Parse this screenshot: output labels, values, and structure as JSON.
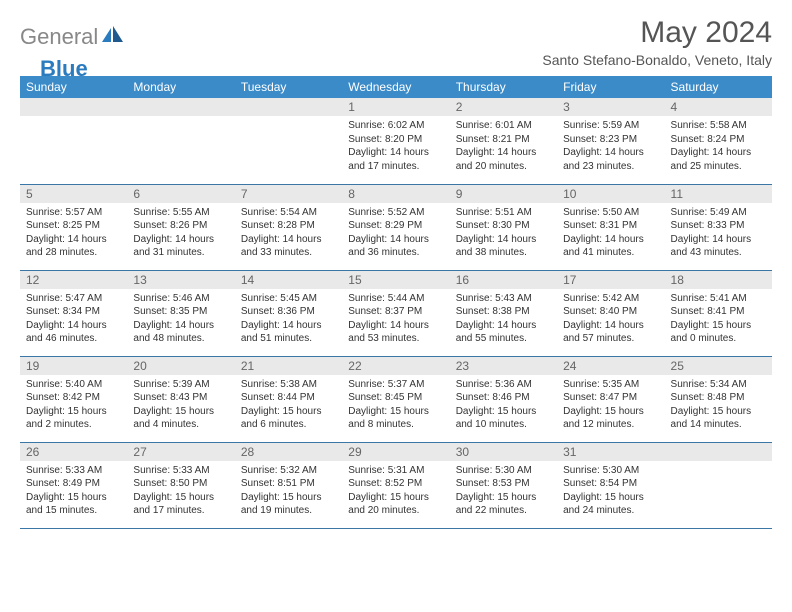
{
  "logo": {
    "text_gray": "General",
    "text_blue": "Blue"
  },
  "title": "May 2024",
  "location": "Santo Stefano-Bonaldo, Veneto, Italy",
  "colors": {
    "header_bg": "#3b8bc9",
    "header_text": "#ffffff",
    "daynum_bg": "#e9e9e9",
    "daynum_text": "#666666",
    "body_text": "#333333",
    "rule": "#3b77a6",
    "logo_gray": "#888888",
    "logo_blue": "#2b7bbf"
  },
  "day_headers": [
    "Sunday",
    "Monday",
    "Tuesday",
    "Wednesday",
    "Thursday",
    "Friday",
    "Saturday"
  ],
  "weeks": [
    [
      null,
      null,
      null,
      {
        "n": "1",
        "sr": "Sunrise: 6:02 AM",
        "ss": "Sunset: 8:20 PM",
        "d1": "Daylight: 14 hours",
        "d2": "and 17 minutes."
      },
      {
        "n": "2",
        "sr": "Sunrise: 6:01 AM",
        "ss": "Sunset: 8:21 PM",
        "d1": "Daylight: 14 hours",
        "d2": "and 20 minutes."
      },
      {
        "n": "3",
        "sr": "Sunrise: 5:59 AM",
        "ss": "Sunset: 8:23 PM",
        "d1": "Daylight: 14 hours",
        "d2": "and 23 minutes."
      },
      {
        "n": "4",
        "sr": "Sunrise: 5:58 AM",
        "ss": "Sunset: 8:24 PM",
        "d1": "Daylight: 14 hours",
        "d2": "and 25 minutes."
      }
    ],
    [
      {
        "n": "5",
        "sr": "Sunrise: 5:57 AM",
        "ss": "Sunset: 8:25 PM",
        "d1": "Daylight: 14 hours",
        "d2": "and 28 minutes."
      },
      {
        "n": "6",
        "sr": "Sunrise: 5:55 AM",
        "ss": "Sunset: 8:26 PM",
        "d1": "Daylight: 14 hours",
        "d2": "and 31 minutes."
      },
      {
        "n": "7",
        "sr": "Sunrise: 5:54 AM",
        "ss": "Sunset: 8:28 PM",
        "d1": "Daylight: 14 hours",
        "d2": "and 33 minutes."
      },
      {
        "n": "8",
        "sr": "Sunrise: 5:52 AM",
        "ss": "Sunset: 8:29 PM",
        "d1": "Daylight: 14 hours",
        "d2": "and 36 minutes."
      },
      {
        "n": "9",
        "sr": "Sunrise: 5:51 AM",
        "ss": "Sunset: 8:30 PM",
        "d1": "Daylight: 14 hours",
        "d2": "and 38 minutes."
      },
      {
        "n": "10",
        "sr": "Sunrise: 5:50 AM",
        "ss": "Sunset: 8:31 PM",
        "d1": "Daylight: 14 hours",
        "d2": "and 41 minutes."
      },
      {
        "n": "11",
        "sr": "Sunrise: 5:49 AM",
        "ss": "Sunset: 8:33 PM",
        "d1": "Daylight: 14 hours",
        "d2": "and 43 minutes."
      }
    ],
    [
      {
        "n": "12",
        "sr": "Sunrise: 5:47 AM",
        "ss": "Sunset: 8:34 PM",
        "d1": "Daylight: 14 hours",
        "d2": "and 46 minutes."
      },
      {
        "n": "13",
        "sr": "Sunrise: 5:46 AM",
        "ss": "Sunset: 8:35 PM",
        "d1": "Daylight: 14 hours",
        "d2": "and 48 minutes."
      },
      {
        "n": "14",
        "sr": "Sunrise: 5:45 AM",
        "ss": "Sunset: 8:36 PM",
        "d1": "Daylight: 14 hours",
        "d2": "and 51 minutes."
      },
      {
        "n": "15",
        "sr": "Sunrise: 5:44 AM",
        "ss": "Sunset: 8:37 PM",
        "d1": "Daylight: 14 hours",
        "d2": "and 53 minutes."
      },
      {
        "n": "16",
        "sr": "Sunrise: 5:43 AM",
        "ss": "Sunset: 8:38 PM",
        "d1": "Daylight: 14 hours",
        "d2": "and 55 minutes."
      },
      {
        "n": "17",
        "sr": "Sunrise: 5:42 AM",
        "ss": "Sunset: 8:40 PM",
        "d1": "Daylight: 14 hours",
        "d2": "and 57 minutes."
      },
      {
        "n": "18",
        "sr": "Sunrise: 5:41 AM",
        "ss": "Sunset: 8:41 PM",
        "d1": "Daylight: 15 hours",
        "d2": "and 0 minutes."
      }
    ],
    [
      {
        "n": "19",
        "sr": "Sunrise: 5:40 AM",
        "ss": "Sunset: 8:42 PM",
        "d1": "Daylight: 15 hours",
        "d2": "and 2 minutes."
      },
      {
        "n": "20",
        "sr": "Sunrise: 5:39 AM",
        "ss": "Sunset: 8:43 PM",
        "d1": "Daylight: 15 hours",
        "d2": "and 4 minutes."
      },
      {
        "n": "21",
        "sr": "Sunrise: 5:38 AM",
        "ss": "Sunset: 8:44 PM",
        "d1": "Daylight: 15 hours",
        "d2": "and 6 minutes."
      },
      {
        "n": "22",
        "sr": "Sunrise: 5:37 AM",
        "ss": "Sunset: 8:45 PM",
        "d1": "Daylight: 15 hours",
        "d2": "and 8 minutes."
      },
      {
        "n": "23",
        "sr": "Sunrise: 5:36 AM",
        "ss": "Sunset: 8:46 PM",
        "d1": "Daylight: 15 hours",
        "d2": "and 10 minutes."
      },
      {
        "n": "24",
        "sr": "Sunrise: 5:35 AM",
        "ss": "Sunset: 8:47 PM",
        "d1": "Daylight: 15 hours",
        "d2": "and 12 minutes."
      },
      {
        "n": "25",
        "sr": "Sunrise: 5:34 AM",
        "ss": "Sunset: 8:48 PM",
        "d1": "Daylight: 15 hours",
        "d2": "and 14 minutes."
      }
    ],
    [
      {
        "n": "26",
        "sr": "Sunrise: 5:33 AM",
        "ss": "Sunset: 8:49 PM",
        "d1": "Daylight: 15 hours",
        "d2": "and 15 minutes."
      },
      {
        "n": "27",
        "sr": "Sunrise: 5:33 AM",
        "ss": "Sunset: 8:50 PM",
        "d1": "Daylight: 15 hours",
        "d2": "and 17 minutes."
      },
      {
        "n": "28",
        "sr": "Sunrise: 5:32 AM",
        "ss": "Sunset: 8:51 PM",
        "d1": "Daylight: 15 hours",
        "d2": "and 19 minutes."
      },
      {
        "n": "29",
        "sr": "Sunrise: 5:31 AM",
        "ss": "Sunset: 8:52 PM",
        "d1": "Daylight: 15 hours",
        "d2": "and 20 minutes."
      },
      {
        "n": "30",
        "sr": "Sunrise: 5:30 AM",
        "ss": "Sunset: 8:53 PM",
        "d1": "Daylight: 15 hours",
        "d2": "and 22 minutes."
      },
      {
        "n": "31",
        "sr": "Sunrise: 5:30 AM",
        "ss": "Sunset: 8:54 PM",
        "d1": "Daylight: 15 hours",
        "d2": "and 24 minutes."
      },
      null
    ]
  ]
}
